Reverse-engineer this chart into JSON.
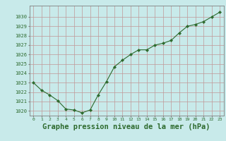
{
  "x": [
    0,
    1,
    2,
    3,
    4,
    5,
    6,
    7,
    8,
    9,
    10,
    11,
    12,
    13,
    14,
    15,
    16,
    17,
    18,
    19,
    20,
    21,
    22,
    23
  ],
  "y": [
    1023.0,
    1022.2,
    1021.7,
    1021.1,
    1020.2,
    1020.1,
    1019.8,
    1020.1,
    1021.7,
    1023.1,
    1024.7,
    1025.4,
    1026.0,
    1026.5,
    1026.5,
    1027.0,
    1027.2,
    1027.5,
    1028.3,
    1029.0,
    1029.2,
    1029.5,
    1030.0,
    1030.5
  ],
  "line_color": "#2d6a2d",
  "marker_color": "#2d6a2d",
  "bg_color": "#c8eaea",
  "grid_color": "#c09898",
  "title": "Graphe pression niveau de la mer (hPa)",
  "xlabel_ticks": [
    "0",
    "1",
    "2",
    "3",
    "4",
    "5",
    "6",
    "7",
    "8",
    "9",
    "10",
    "11",
    "12",
    "13",
    "14",
    "15",
    "16",
    "17",
    "18",
    "19",
    "20",
    "21",
    "22",
    "23"
  ],
  "ylim": [
    1019.5,
    1031.2
  ],
  "yticks": [
    1020,
    1021,
    1022,
    1023,
    1024,
    1025,
    1026,
    1027,
    1028,
    1029,
    1030
  ],
  "title_color": "#2d6a2d",
  "tick_color": "#2d6a2d",
  "title_fontsize": 7.5,
  "axis_bg": "#c8eaea",
  "spine_color": "#808080"
}
